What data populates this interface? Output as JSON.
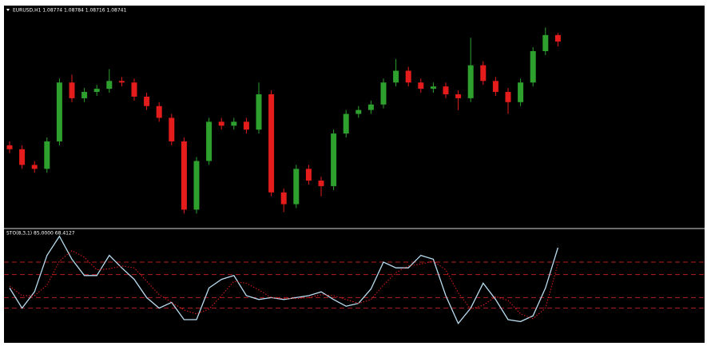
{
  "chart_data": [
    {
      "type": "candlestick",
      "title": "EURUSD,H1  1.08774 1.08784 1.08716 1.08741",
      "open": [
        1.08212,
        1.08192,
        1.08112,
        1.08092,
        1.08232,
        1.08532,
        1.08452,
        1.08484,
        1.085,
        1.0854,
        1.08532,
        1.0846,
        1.08412,
        1.08352,
        1.08232,
        1.07884,
        1.08132,
        1.08332,
        1.08312,
        1.08332,
        1.08292,
        1.08472,
        1.07972,
        1.07912,
        1.08092,
        1.08032,
        1.08004,
        1.08272,
        1.08372,
        1.08392,
        1.0842,
        1.08532,
        1.08592,
        1.08532,
        1.085,
        1.08512,
        1.08472,
        1.08452,
        1.0862,
        1.0854,
        1.08484,
        1.08432,
        1.08532,
        1.08692,
        1.08774
      ],
      "high": [
        1.08232,
        1.08212,
        1.08132,
        1.08252,
        1.08552,
        1.08572,
        1.08504,
        1.0852,
        1.086,
        1.0856,
        1.08552,
        1.0848,
        1.08432,
        1.08372,
        1.08252,
        1.08152,
        1.08352,
        1.08352,
        1.08352,
        1.08352,
        1.08532,
        1.08492,
        1.07992,
        1.08112,
        1.08112,
        1.08052,
        1.08292,
        1.08392,
        1.08412,
        1.0844,
        1.08552,
        1.08652,
        1.08612,
        1.08552,
        1.08532,
        1.08532,
        1.08492,
        1.0876,
        1.0864,
        1.0856,
        1.08504,
        1.08552,
        1.08712,
        1.08812,
        1.08784
      ],
      "low": [
        1.08172,
        1.08092,
        1.08072,
        1.08072,
        1.08212,
        1.08432,
        1.08432,
        1.08464,
        1.0848,
        1.08512,
        1.0844,
        1.08392,
        1.08332,
        1.08212,
        1.07864,
        1.07864,
        1.08112,
        1.08292,
        1.08292,
        1.08272,
        1.08272,
        1.07952,
        1.07872,
        1.07892,
        1.08012,
        1.07952,
        1.07984,
        1.08252,
        1.08352,
        1.08372,
        1.084,
        1.08512,
        1.08512,
        1.0848,
        1.0848,
        1.08452,
        1.08392,
        1.08432,
        1.0852,
        1.08464,
        1.08372,
        1.08412,
        1.08512,
        1.08672,
        1.08716
      ],
      "close": [
        1.08192,
        1.08112,
        1.08092,
        1.08232,
        1.08532,
        1.08452,
        1.08484,
        1.085,
        1.0854,
        1.08532,
        1.0846,
        1.08412,
        1.08352,
        1.08232,
        1.07884,
        1.08132,
        1.08332,
        1.08312,
        1.08332,
        1.08292,
        1.08472,
        1.07972,
        1.07912,
        1.08092,
        1.08032,
        1.08004,
        1.08272,
        1.08372,
        1.08392,
        1.0842,
        1.08532,
        1.08592,
        1.08532,
        1.085,
        1.08512,
        1.08472,
        1.08452,
        1.0862,
        1.0854,
        1.08484,
        1.08432,
        1.08532,
        1.08692,
        1.08774,
        1.08741
      ],
      "up_color": "#2ea02e",
      "down_color": "#e51c1c",
      "ylim": [
        1.078,
        1.0892
      ]
    },
    {
      "type": "line",
      "title": "STO(8,3,1) 85.0000 68.4127",
      "series": [
        {
          "color": "#b9dcf0",
          "style": "solid",
          "values": [
            43,
            22,
            39,
            77,
            97,
            73,
            56,
            56,
            77,
            64,
            52,
            33,
            22,
            28,
            10,
            10,
            43,
            52,
            56,
            35,
            31,
            33,
            31,
            33,
            35,
            39,
            31,
            24,
            27,
            42,
            70,
            64,
            64,
            77,
            73,
            35,
            6,
            22,
            48,
            31,
            10,
            8,
            14,
            43,
            85
          ]
        },
        {
          "color": "#e51c1c",
          "style": "dotted",
          "values": [
            45,
            35,
            35,
            46,
            71,
            82,
            75,
            62,
            63,
            66,
            64,
            50,
            36,
            28,
            20,
            16,
            21,
            35,
            50,
            48,
            41,
            33,
            32,
            32,
            33,
            36,
            35,
            31,
            27,
            31,
            46,
            59,
            66,
            68,
            71,
            62,
            38,
            21,
            25,
            34,
            30,
            16,
            11,
            22,
            68.4127
          ]
        }
      ],
      "levels": [
        70,
        57,
        33,
        22
      ],
      "level_color": "#b41e1e",
      "ylim": [
        0,
        100
      ]
    }
  ]
}
